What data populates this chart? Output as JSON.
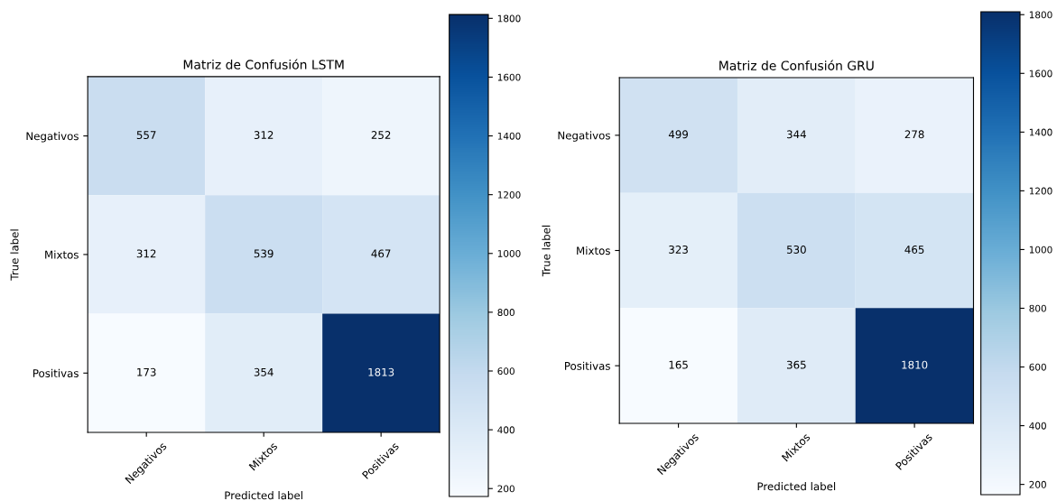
{
  "chart_data": [
    {
      "type": "heatmap",
      "title": "Matriz de Confusión LSTM",
      "xlabel": "Predicted label",
      "ylabel": "True label",
      "categories": [
        "Negativos",
        "Mixtos",
        "Positivas"
      ],
      "y_categories": [
        "Negativos",
        "Mixtos",
        "Positivas"
      ],
      "cells": [
        [
          557,
          312,
          252
        ],
        [
          312,
          539,
          467
        ],
        [
          173,
          354,
          1813
        ]
      ],
      "clim": [
        173,
        1813
      ],
      "cticks": [
        200,
        400,
        600,
        800,
        1000,
        1200,
        1400,
        1600,
        1800
      ],
      "data_labels": true
    },
    {
      "type": "heatmap",
      "title": "Matriz de Confusión GRU",
      "xlabel": "Predicted label",
      "ylabel": "True label",
      "categories": [
        "Negativos",
        "Mixtos",
        "Positivas"
      ],
      "y_categories": [
        "Negativos",
        "Mixtos",
        "Positivas"
      ],
      "cells": [
        [
          499,
          344,
          278
        ],
        [
          323,
          530,
          465
        ],
        [
          165,
          365,
          1810
        ]
      ],
      "clim": [
        165,
        1810
      ],
      "cticks": [
        200,
        400,
        600,
        800,
        1000,
        1200,
        1400,
        1600,
        1800
      ],
      "data_labels": true
    }
  ]
}
